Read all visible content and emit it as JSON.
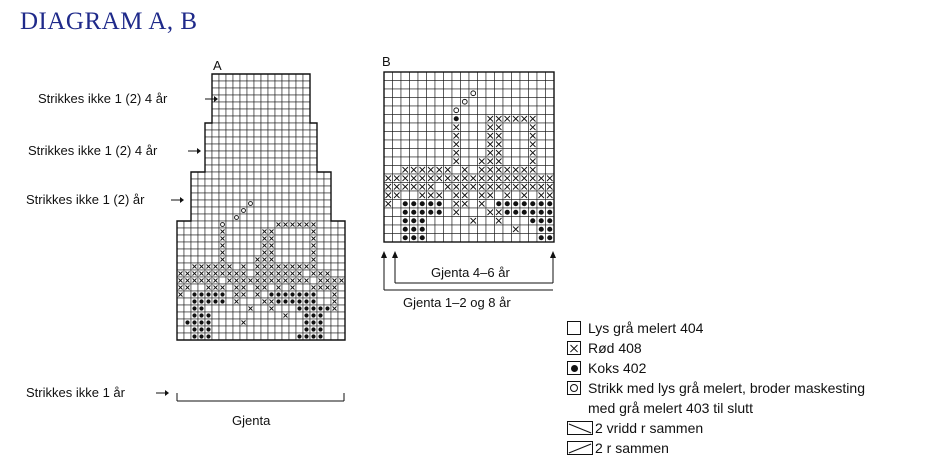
{
  "title": "DIAGRAM A, B",
  "diagram_a": {
    "label": "A",
    "notes": [
      "Strikkes ikke 1 (2) 4 år",
      "Strikkes ikke 1 (2) 4 år",
      "Strikkes ikke 1 (2) år",
      "Strikkes ikke 1 år"
    ],
    "repeat_label": "Gjenta",
    "pattern_rows": [
      ".........................",
      ".........................",
      ".........................",
      ".........................",
      ".........................",
      ".........................",
      ".........................",
      ".........................",
      ".........................",
      ".........................",
      ".........................",
      ".........................",
      ".........................",
      ".........................",
      ".........................",
      ".........................",
      ".........................",
      ".........................",
      "........O................",
      ".......O.................",
      "......O..................",
      "......O.......XXXXXX.....",
      "......X.....XX.....X.....",
      "......X.....XX.....X.....",
      "......X.....XX.....X.....",
      "......X.....XX.....X.....",
      "......X....XXX.....X.....",
      "..XXXXXX.X.XXXXXXXXX.....",
      "XXXXXXXXXX.XXXXXXX.XXX..X",
      "XXXXXX.XXXXXXXXXXXX.XXXX.",
      "XX..XXX.XX.XX.X.X..XXXX..",
      "X.OOOOO.XX.X.OOOOOOO..X..",
      "..OOOOO.X...XXOOOOOO..X..",
      "..OO......X..X...OOOOOX..",
      "..OOO..........X..OOO....",
      ".OOOO....X........OOO....",
      "..OOO.............OOO....",
      "..OOO............OOOO...."
    ]
  },
  "diagram_b": {
    "label": "B",
    "repeat_inner_label": "Gjenta 4–6 år",
    "repeat_outer_label": "Gjenta 1–2 og 8 år",
    "pattern_rows": [
      "...................",
      "....................",
      "..........O.........",
      ".........O..........",
      "........O...........",
      "........O...XXXXXX..",
      "........X...XX...X..",
      "........X...XX...X..",
      "........X...XX...X..",
      "........X...XX...X..",
      "........X..XXX...X..",
      "..XXXXXX.X.XXXXXXX..",
      "XXXXXXXXXXXXXXXXXXXX",
      "XXXXXX.XXXXXXXXXXXXX",
      "XX..XXX.XX.XX.X.X.XX",
      "X.OOOOO.XX.X.OOOOOOO",
      "..OOOOO.X...XXOOOOOO",
      "..OOO.....X..X...OOO",
      "..OOO..........X..OO",
      "..OOO.............OO"
    ]
  },
  "legend": [
    {
      "icon": "open-square-icon",
      "text": "Lys grå melert 404"
    },
    {
      "icon": "cross-square-icon",
      "text": "Rød 408"
    },
    {
      "icon": "filled-dot-icon",
      "text": "Koks 402"
    },
    {
      "icon": "ring-dot-icon",
      "text": "Strikk med lys grå melert, broder maskesting"
    },
    {
      "icon": "",
      "text": "med grå melert 403 til slutt"
    },
    {
      "icon": "two-twisted-together-icon",
      "text": "2 vridd r sammen"
    },
    {
      "icon": "two-together-icon",
      "text": "2 r sammen"
    }
  ]
}
